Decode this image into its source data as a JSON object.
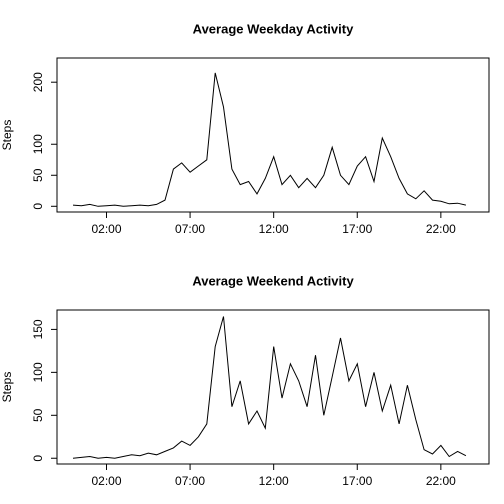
{
  "chart_data": [
    {
      "type": "line",
      "title": "Average Weekday Activity",
      "y_label": "Steps",
      "x": [
        0,
        0.5,
        1,
        1.5,
        2,
        2.5,
        3,
        3.5,
        4,
        4.5,
        5,
        5.5,
        6,
        6.5,
        7,
        7.5,
        8,
        8.5,
        9,
        9.5,
        10,
        10.5,
        11,
        11.5,
        12,
        12.5,
        13,
        13.5,
        14,
        14.5,
        15,
        15.5,
        16,
        16.5,
        17,
        17.5,
        18,
        18.5,
        19,
        19.5,
        20,
        20.5,
        21,
        21.5,
        22,
        22.5,
        23,
        23.5
      ],
      "series": [
        {
          "name": "Weekday",
          "color": "#000000",
          "values": [
            2,
            1,
            3,
            0,
            1,
            2,
            0,
            1,
            2,
            1,
            3,
            10,
            60,
            70,
            55,
            65,
            75,
            215,
            160,
            60,
            35,
            40,
            20,
            45,
            80,
            35,
            50,
            30,
            45,
            30,
            50,
            95,
            50,
            35,
            65,
            80,
            40,
            110,
            80,
            45,
            20,
            12,
            25,
            10,
            8,
            4,
            5,
            2
          ]
        }
      ],
      "xlim": [
        -0.96,
        24.88
      ],
      "xticks": [
        {
          "value": 2,
          "label": "02:00"
        },
        {
          "value": 7,
          "label": "07:00"
        },
        {
          "value": 12,
          "label": "12:00"
        },
        {
          "value": 17,
          "label": "17:00"
        },
        {
          "value": 22,
          "label": "22:00"
        }
      ],
      "ylim": [
        -9.2,
        239
      ],
      "yticks": [
        0,
        50,
        100,
        200
      ]
    },
    {
      "type": "line",
      "title": "Average Weekend Activity",
      "y_label": "Steps",
      "x": [
        0,
        0.5,
        1,
        1.5,
        2,
        2.5,
        3,
        3.5,
        4,
        4.5,
        5,
        5.5,
        6,
        6.5,
        7,
        7.5,
        8,
        8.5,
        9,
        9.5,
        10,
        10.5,
        11,
        11.5,
        12,
        12.5,
        13,
        13.5,
        14,
        14.5,
        15,
        15.5,
        16,
        16.5,
        17,
        17.5,
        18,
        18.5,
        19,
        19.5,
        20,
        20.5,
        21,
        21.5,
        22,
        22.5,
        23,
        23.5
      ],
      "series": [
        {
          "name": "Weekend",
          "color": "#000000",
          "values": [
            0,
            1,
            2,
            0,
            1,
            0,
            2,
            4,
            3,
            6,
            4,
            8,
            12,
            20,
            15,
            25,
            40,
            130,
            165,
            60,
            90,
            40,
            55,
            35,
            130,
            70,
            110,
            90,
            60,
            120,
            50,
            95,
            140,
            90,
            110,
            60,
            100,
            55,
            85,
            40,
            85,
            45,
            10,
            5,
            15,
            2,
            8,
            3
          ]
        }
      ],
      "xlim": [
        -0.96,
        24.88
      ],
      "xticks": [
        {
          "value": 2,
          "label": "02:00"
        },
        {
          "value": 7,
          "label": "07:00"
        },
        {
          "value": 12,
          "label": "12:00"
        },
        {
          "value": 17,
          "label": "17:00"
        },
        {
          "value": 22,
          "label": "22:00"
        }
      ],
      "ylim": [
        -6.7,
        172.6
      ],
      "yticks": [
        0,
        50,
        100,
        150
      ]
    }
  ]
}
